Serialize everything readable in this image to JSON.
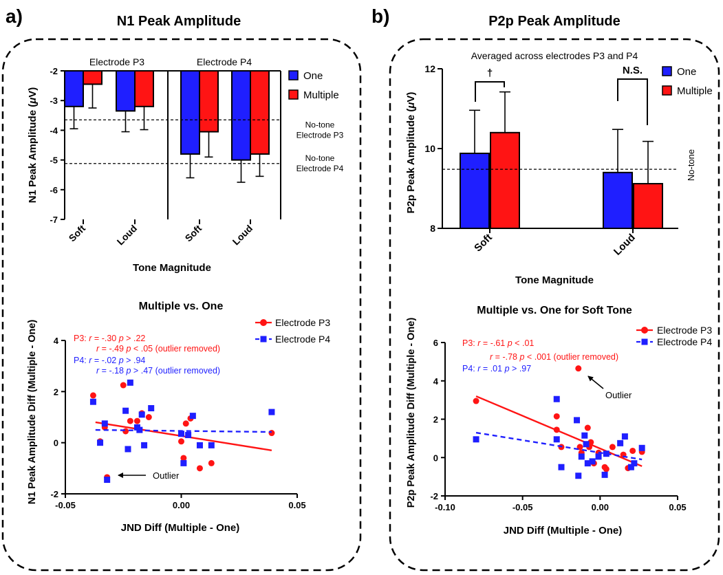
{
  "panels": {
    "a": {
      "letter": "a)",
      "title": "N1 Peak Amplitude"
    },
    "b": {
      "letter": "b)",
      "title": "P2p Peak Amplitude"
    }
  },
  "chart_data": [
    {
      "id": "a_top",
      "type": "bar",
      "subgroups": [
        "Electrode P3",
        "Electrode P4"
      ],
      "categories": [
        "Soft",
        "Loud",
        "Soft",
        "Loud"
      ],
      "series": [
        {
          "name": "One",
          "color": "#1f1fff",
          "values": [
            -3.2,
            -3.35,
            -4.8,
            -5.0
          ],
          "err": [
            0.75,
            0.7,
            0.8,
            0.75
          ]
        },
        {
          "name": "Multiple",
          "color": "#ff1414",
          "values": [
            -2.45,
            -3.2,
            -4.05,
            -4.8
          ],
          "err": [
            0.8,
            0.78,
            0.85,
            0.75
          ]
        }
      ],
      "ylabel": "N1 Peak Amplitude (μV)",
      "xlabel": "Tone Magnitude",
      "ylim": [
        -7,
        -2
      ],
      "yticks": [
        "-2",
        "-3",
        "-4",
        "-5",
        "-6",
        "-7"
      ],
      "reference_lines": [
        {
          "value": -3.65,
          "label_lines": [
            "No-tone",
            "Electrode P3"
          ]
        },
        {
          "value": -5.12,
          "label_lines": [
            "No-tone",
            "Electrode P4"
          ]
        }
      ],
      "legend": [
        "One",
        "Multiple"
      ]
    },
    {
      "id": "a_bottom",
      "type": "scatter",
      "title": "Multiple vs. One",
      "xlabel": "JND Diff (Multiple - One)",
      "ylabel": "N1 Peak Amplitude Diff  (Multiple - One)",
      "xlim": [
        -0.05,
        0.05
      ],
      "ylim": [
        -2,
        4
      ],
      "xticks": [
        "-0.05",
        "0.00",
        "0.05"
      ],
      "yticks": [
        "-2",
        "0",
        "2",
        "4"
      ],
      "legend": [
        "Electrode P3",
        "Electrode P4"
      ],
      "series": [
        {
          "name": "Electrode P3",
          "color": "#ff1414",
          "marker": "circle",
          "points": [
            [
              -0.038,
              1.85
            ],
            [
              -0.035,
              0.05
            ],
            [
              -0.033,
              0.6
            ],
            [
              -0.032,
              -1.35
            ],
            [
              -0.025,
              2.25
            ],
            [
              -0.024,
              0.45
            ],
            [
              -0.022,
              0.85
            ],
            [
              -0.019,
              0.85
            ],
            [
              -0.017,
              1.15
            ],
            [
              -0.014,
              1.0
            ],
            [
              0.0,
              0.05
            ],
            [
              0.001,
              -0.6
            ],
            [
              0.002,
              0.75
            ],
            [
              0.004,
              0.95
            ],
            [
              0.008,
              -1.0
            ],
            [
              0.013,
              -0.8
            ],
            [
              0.039,
              0.38
            ]
          ],
          "fit": [
            [
              -0.037,
              0.8
            ],
            [
              0.039,
              -0.3
            ]
          ]
        },
        {
          "name": "Electrode P4",
          "color": "#1f1fff",
          "marker": "square",
          "points": [
            [
              -0.038,
              1.6
            ],
            [
              -0.035,
              0.0
            ],
            [
              -0.033,
              0.75
            ],
            [
              -0.032,
              -1.45
            ],
            [
              -0.024,
              1.25
            ],
            [
              -0.023,
              -0.25
            ],
            [
              -0.022,
              2.35
            ],
            [
              -0.019,
              0.6
            ],
            [
              -0.018,
              0.5
            ],
            [
              -0.017,
              1.1
            ],
            [
              -0.016,
              -0.1
            ],
            [
              -0.013,
              1.35
            ],
            [
              0.0,
              0.35
            ],
            [
              0.001,
              -0.8
            ],
            [
              0.003,
              0.3
            ],
            [
              0.005,
              1.05
            ],
            [
              0.008,
              -0.1
            ],
            [
              0.013,
              -0.1
            ],
            [
              0.039,
              1.2
            ]
          ],
          "fit": [
            [
              -0.037,
              0.5
            ],
            [
              0.039,
              0.42
            ]
          ]
        }
      ],
      "annotations": {
        "p3": [
          "P3: r = -.30 p > .22",
          "r = -.49 p < .05 (outlier removed)"
        ],
        "p4": [
          "P4: r = -.02 p > .94",
          "r = -.18 p > .47 (outlier removed)"
        ],
        "outlier": "Outlier"
      }
    },
    {
      "id": "b_top",
      "type": "bar",
      "subtitle": "Averaged across electrodes P3 and P4",
      "categories": [
        "Soft",
        "Loud"
      ],
      "series": [
        {
          "name": "One",
          "color": "#1f1fff",
          "values": [
            9.88,
            9.4
          ],
          "err": [
            1.08,
            1.08
          ]
        },
        {
          "name": "Multiple",
          "color": "#ff1414",
          "values": [
            10.4,
            9.12
          ],
          "err": [
            1.02,
            1.06
          ]
        }
      ],
      "ylabel": "P2p Peak Amplitude (μV)",
      "xlabel": "Tone Magnitude",
      "ylim": [
        8,
        12
      ],
      "yticks": [
        "12",
        "10",
        "8"
      ],
      "reference_lines": [
        {
          "value": 9.48,
          "label_lines": [
            "No-tone"
          ]
        }
      ],
      "significance": [
        "†",
        "N.S."
      ],
      "legend": [
        "One",
        "Multiple"
      ]
    },
    {
      "id": "b_bottom",
      "type": "scatter",
      "title": "Multiple vs. One for Soft Tone",
      "xlabel": "JND Diff (Multiple - One)",
      "ylabel": "P2p Peak Amplitude Diff  (Multiple - One)",
      "xlim": [
        -0.1,
        0.05
      ],
      "ylim": [
        -2,
        6
      ],
      "xticks": [
        "-0.10",
        "-0.05",
        "0.00",
        "0.05"
      ],
      "yticks": [
        "-2",
        "0",
        "2",
        "4",
        "6"
      ],
      "legend": [
        "Electrode P3",
        "Electrode P4"
      ],
      "series": [
        {
          "name": "Electrode P3",
          "color": "#ff1414",
          "marker": "circle",
          "points": [
            [
              -0.08,
              2.95
            ],
            [
              -0.028,
              2.15
            ],
            [
              -0.028,
              1.45
            ],
            [
              -0.025,
              0.55
            ],
            [
              -0.014,
              4.65
            ],
            [
              -0.013,
              0.55
            ],
            [
              -0.012,
              0.25
            ],
            [
              -0.008,
              1.55
            ],
            [
              -0.007,
              0.55
            ],
            [
              -0.006,
              0.8
            ],
            [
              -0.004,
              -0.3
            ],
            [
              -0.001,
              0.25
            ],
            [
              0.003,
              -0.5
            ],
            [
              0.004,
              -0.6
            ],
            [
              0.008,
              0.55
            ],
            [
              0.015,
              0.15
            ],
            [
              0.018,
              -0.55
            ],
            [
              0.021,
              0.35
            ],
            [
              0.027,
              0.3
            ]
          ],
          "fit": [
            [
              -0.08,
              3.2
            ],
            [
              0.027,
              -0.45
            ]
          ]
        },
        {
          "name": "Electrode P4",
          "color": "#1f1fff",
          "marker": "square",
          "points": [
            [
              -0.08,
              0.95
            ],
            [
              -0.028,
              3.05
            ],
            [
              -0.028,
              0.95
            ],
            [
              -0.025,
              -0.5
            ],
            [
              -0.015,
              1.95
            ],
            [
              -0.014,
              -0.95
            ],
            [
              -0.012,
              0.05
            ],
            [
              -0.01,
              1.15
            ],
            [
              -0.009,
              0.7
            ],
            [
              -0.008,
              -0.3
            ],
            [
              -0.005,
              -0.2
            ],
            [
              -0.001,
              0.05
            ],
            [
              0.003,
              -0.9
            ],
            [
              0.004,
              0.2
            ],
            [
              0.013,
              0.75
            ],
            [
              0.016,
              1.1
            ],
            [
              0.02,
              -0.5
            ],
            [
              0.022,
              -0.3
            ],
            [
              0.027,
              0.5
            ]
          ],
          "fit": [
            [
              -0.08,
              1.3
            ],
            [
              0.027,
              -0.1
            ]
          ]
        }
      ],
      "annotations": {
        "p3": [
          "P3:  r = -.61 p < .01",
          "r = -.78 p < .001 (outlier removed)"
        ],
        "p4": [
          "P4:  r =  .01 p > .97"
        ],
        "outlier": "Outlier"
      }
    }
  ]
}
